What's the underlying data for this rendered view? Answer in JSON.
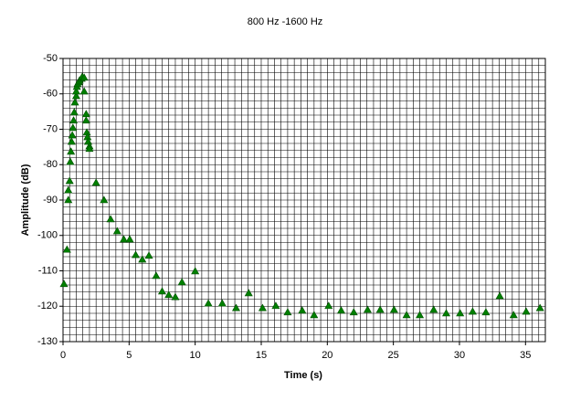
{
  "chart_data": {
    "type": "scatter",
    "title": "800 Hz -1600 Hz",
    "xlabel": "Time (s)",
    "ylabel": "Amplitude (dB)",
    "color": "#008000",
    "marker": "triangle",
    "xlim": [
      0,
      36.5
    ],
    "ylim": [
      -130,
      -50
    ],
    "xticks": [
      0,
      5,
      10,
      15,
      20,
      25,
      30,
      35
    ],
    "yticks": [
      -50,
      -60,
      -70,
      -80,
      -90,
      -100,
      -110,
      -120,
      -130
    ],
    "grid": true,
    "minor_grid": {
      "x": 0.5,
      "y": 2
    },
    "x": [
      0.07,
      0.3,
      0.4,
      0.4,
      0.5,
      0.55,
      0.6,
      0.65,
      0.7,
      0.75,
      0.8,
      0.85,
      0.9,
      1.0,
      1.0,
      1.05,
      1.1,
      1.2,
      1.25,
      1.4,
      1.45,
      1.6,
      1.6,
      1.75,
      1.75,
      1.8,
      1.85,
      1.9,
      2.0,
      2.0,
      2.5,
      3.1,
      3.6,
      4.1,
      4.6,
      5.05,
      5.5,
      6.0,
      6.5,
      7.05,
      7.5,
      8.0,
      8.5,
      9.0,
      10.0,
      11.0,
      12.05,
      13.1,
      14.05,
      15.1,
      16.1,
      17.0,
      18.1,
      19.0,
      20.1,
      21.05,
      22.0,
      23.05,
      24.0,
      25.05,
      26.0,
      27.0,
      28.05,
      29.0,
      30.05,
      31.0,
      32.0,
      33.05,
      34.1,
      35.05,
      36.1
    ],
    "values": [
      -113.7,
      -104,
      -90,
      -87.2,
      -84.6,
      -79.2,
      -76.3,
      -73.5,
      -71.7,
      -69.6,
      -67.5,
      -65.2,
      -62.4,
      -60.6,
      -59.3,
      -58,
      -57.2,
      -56.7,
      -56.2,
      -55.7,
      -55.2,
      -55.4,
      -59.3,
      -65.7,
      -67.5,
      -70.9,
      -72.2,
      -73.5,
      -74.8,
      -75.5,
      -85.1,
      -90,
      -95.4,
      -98.8,
      -101.1,
      -101.1,
      -105.5,
      -106.8,
      -105.7,
      -111.4,
      -115.8,
      -116.8,
      -117.4,
      -113.2,
      -110.1,
      -119.2,
      -119.2,
      -120.5,
      -116.3,
      -120.5,
      -119.9,
      -121.7,
      -121.2,
      -122.5,
      -119.9,
      -121.2,
      -121.7,
      -121,
      -121,
      -121,
      -122.5,
      -122.5,
      -121,
      -122,
      -122,
      -121.5,
      -121.7,
      -117.1,
      -122.5,
      -121.5,
      -120.5
    ]
  }
}
